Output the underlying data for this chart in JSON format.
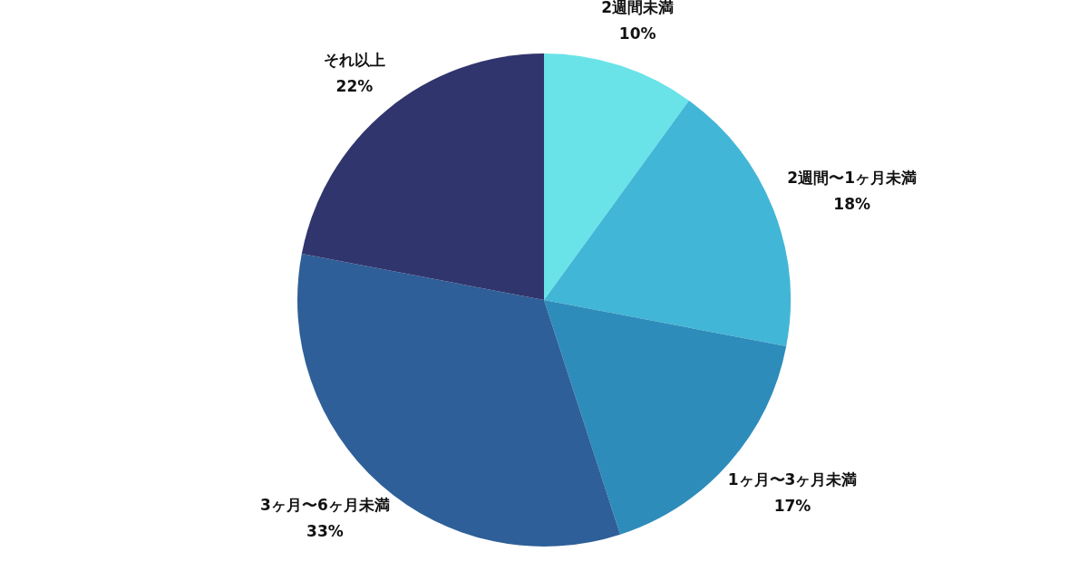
{
  "chart_data": {
    "type": "pie",
    "categories": [
      "2週間未満",
      "2週間〜1ヶ月未満",
      "1ヶ月〜3ヶ月未満",
      "3ヶ月〜6ヶ月未満",
      "それ以上"
    ],
    "values": [
      10,
      18,
      17,
      33,
      22
    ],
    "value_labels": [
      "10%",
      "18%",
      "17%",
      "33%",
      "22%"
    ],
    "colors": [
      "#6ae3e8",
      "#42b6d6",
      "#2e8cba",
      "#2e5f98",
      "#31356d"
    ],
    "legend": false
  }
}
